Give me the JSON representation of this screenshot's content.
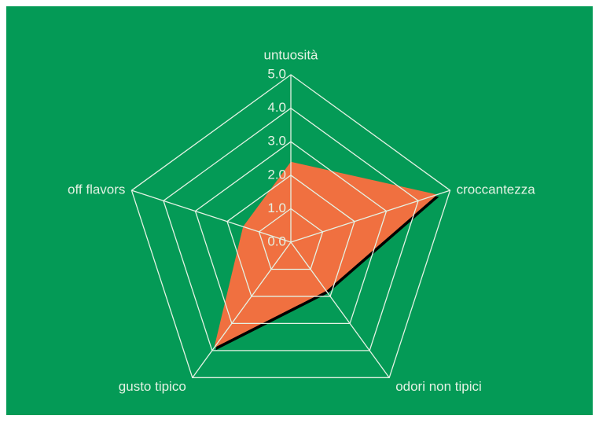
{
  "chart_data": {
    "type": "radar",
    "categories": [
      "untuosità",
      "croccantezza",
      "odori non tipici",
      "gusto tipico",
      "off flavors"
    ],
    "values": [
      2.4,
      4.6,
      1.8,
      3.9,
      1.5
    ],
    "color": "#f07040",
    "ylim": [
      0,
      5
    ],
    "yticks": [
      {
        "value": 0,
        "label": "0.0"
      },
      {
        "value": 1,
        "label": "1.0"
      },
      {
        "value": 2,
        "label": "2.0"
      },
      {
        "value": 3,
        "label": "3.0"
      },
      {
        "value": 4,
        "label": "4.0"
      },
      {
        "value": 5,
        "label": "5.0"
      }
    ],
    "grid": true
  }
}
